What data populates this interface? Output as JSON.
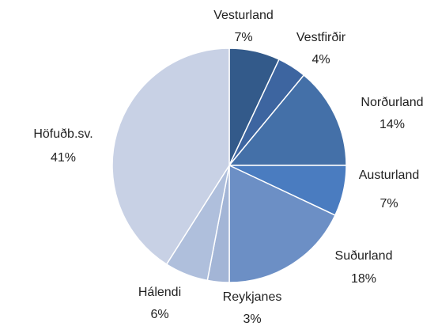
{
  "chart_data": {
    "type": "pie",
    "categories": [
      "Vesturland",
      "Vestfirðir",
      "Norðurland",
      "Austurland",
      "Suðurland",
      "Reykjanes",
      "Hálendi",
      "Höfuðb.sv."
    ],
    "values": [
      7,
      4,
      14,
      7,
      18,
      3,
      6,
      41
    ],
    "value_labels": [
      "7%",
      "4%",
      "14%",
      "7%",
      "18%",
      "3%",
      "6%",
      "41%"
    ],
    "colors": [
      "#335a8a",
      "#3d65a0",
      "#4470a8",
      "#4a7cc0",
      "#6c8fc5",
      "#a3b5d6",
      "#afbfdc",
      "#c8d1e5"
    ]
  }
}
